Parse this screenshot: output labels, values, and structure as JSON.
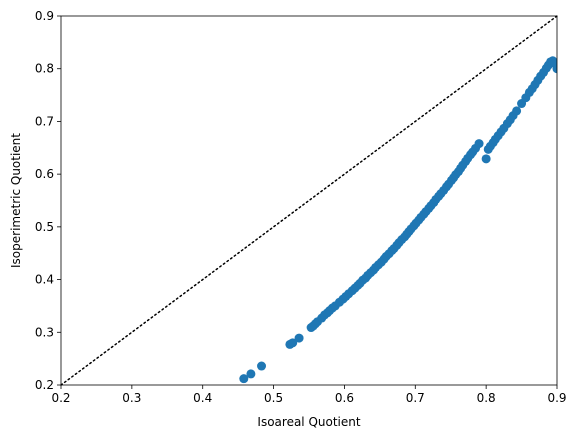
{
  "chart_data": {
    "type": "scatter",
    "title": "",
    "xlabel": "Isoareal Quotient",
    "ylabel": "Isoperimetric Quotient",
    "xlim": [
      0.2,
      0.9
    ],
    "ylim": [
      0.2,
      0.9
    ],
    "xticks": [
      "0.2",
      "0.3",
      "0.4",
      "0.5",
      "0.6",
      "0.7",
      "0.8",
      "0.9"
    ],
    "yticks": [
      "0.2",
      "0.3",
      "0.4",
      "0.5",
      "0.6",
      "0.7",
      "0.8",
      "0.9"
    ],
    "grid": false,
    "reference_line": {
      "style": "dotted",
      "color": "#000000",
      "from": [
        0.2,
        0.2
      ],
      "to": [
        0.9,
        0.9
      ]
    },
    "marker_color": "#1f77b4",
    "x": [
      0.458,
      0.468,
      0.483,
      0.523,
      0.527,
      0.536,
      0.553,
      0.556,
      0.559,
      0.562,
      0.568,
      0.572,
      0.576,
      0.579,
      0.583,
      0.587,
      0.593,
      0.598,
      0.602,
      0.606,
      0.611,
      0.615,
      0.619,
      0.622,
      0.626,
      0.63,
      0.633,
      0.637,
      0.641,
      0.644,
      0.648,
      0.652,
      0.656,
      0.659,
      0.663,
      0.667,
      0.67,
      0.674,
      0.677,
      0.681,
      0.685,
      0.688,
      0.691,
      0.694,
      0.698,
      0.701,
      0.705,
      0.708,
      0.712,
      0.715,
      0.719,
      0.722,
      0.726,
      0.729,
      0.733,
      0.736,
      0.74,
      0.744,
      0.747,
      0.751,
      0.754,
      0.757,
      0.761,
      0.764,
      0.767,
      0.771,
      0.774,
      0.778,
      0.781,
      0.785,
      0.79,
      0.8,
      0.803,
      0.806,
      0.81,
      0.813,
      0.817,
      0.821,
      0.825,
      0.83,
      0.834,
      0.838,
      0.843,
      0.85,
      0.856,
      0.861,
      0.865,
      0.869,
      0.873,
      0.877,
      0.881,
      0.885,
      0.888,
      0.891,
      0.894,
      0.897,
      0.9
    ],
    "y": [
      0.212,
      0.221,
      0.236,
      0.277,
      0.28,
      0.289,
      0.309,
      0.312,
      0.316,
      0.32,
      0.327,
      0.333,
      0.337,
      0.341,
      0.346,
      0.35,
      0.357,
      0.363,
      0.368,
      0.373,
      0.379,
      0.384,
      0.389,
      0.393,
      0.399,
      0.403,
      0.408,
      0.413,
      0.418,
      0.423,
      0.428,
      0.433,
      0.439,
      0.444,
      0.449,
      0.455,
      0.459,
      0.465,
      0.47,
      0.476,
      0.481,
      0.486,
      0.491,
      0.496,
      0.502,
      0.507,
      0.513,
      0.518,
      0.524,
      0.529,
      0.535,
      0.54,
      0.546,
      0.552,
      0.558,
      0.563,
      0.569,
      0.576,
      0.581,
      0.588,
      0.593,
      0.599,
      0.605,
      0.611,
      0.617,
      0.624,
      0.63,
      0.637,
      0.642,
      0.649,
      0.658,
      0.629,
      0.647,
      0.653,
      0.66,
      0.666,
      0.673,
      0.68,
      0.687,
      0.696,
      0.703,
      0.711,
      0.72,
      0.734,
      0.745,
      0.755,
      0.762,
      0.77,
      0.778,
      0.786,
      0.793,
      0.801,
      0.807,
      0.813,
      0.815,
      0.81,
      0.8
    ]
  }
}
